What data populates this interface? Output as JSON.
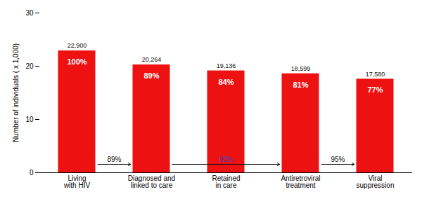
{
  "chart_data": {
    "type": "bar",
    "categories": [
      "Living\nwith HIV",
      "Diagnosed and\nlinked to care",
      "Retained\nin care",
      "Antiretroviral\ntreatment",
      "Viral\nsuppression"
    ],
    "values": [
      22.9,
      20.264,
      19.136,
      18.599,
      17.58
    ],
    "value_labels": [
      "22,900",
      "20,264",
      "19,136",
      "18,599",
      "17,580"
    ],
    "data_labels": true,
    "share_labels": [
      "100%",
      "89%",
      "84%",
      "81%",
      "77%"
    ],
    "color": "#ee1111",
    "ylabel": "Number of individuals ( x 1,000)",
    "ylim": [
      0,
      30
    ],
    "yticks": [
      0,
      10,
      20,
      30
    ],
    "grid": false,
    "arrows": [
      {
        "from": "Living\nwith HIV",
        "to": "Diagnosed and\nlinked to care",
        "label": "89%",
        "color": "#111111"
      },
      {
        "from": "Diagnosed and\nlinked to care",
        "to": "Antiretroviral\ntreatment",
        "label": "92%",
        "color": "#4444bb"
      },
      {
        "from": "Antiretroviral\ntreatment",
        "to": "Viral\nsuppression",
        "label": "95%",
        "color": "#111111"
      }
    ]
  }
}
